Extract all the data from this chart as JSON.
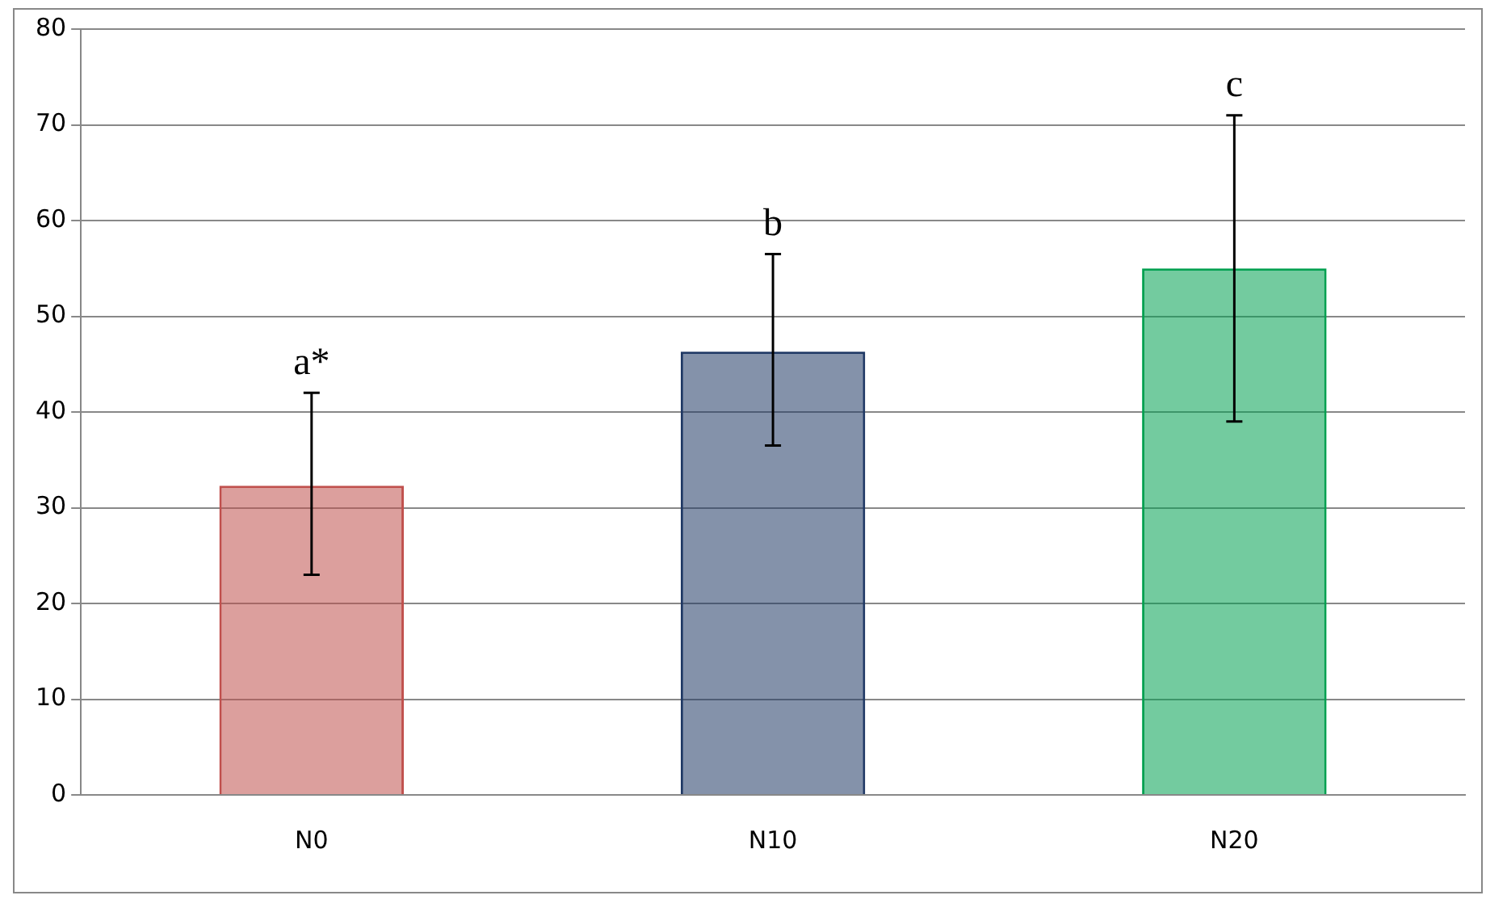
{
  "chart_data": {
    "type": "bar",
    "categories": [
      "N0",
      "N10",
      "N20"
    ],
    "values": [
      32.3,
      46.3,
      55
    ],
    "colors": [
      "#c0504d",
      "#1f3864",
      "#00a050"
    ],
    "errors": [
      [
        23,
        42
      ],
      [
        36.5,
        56.5
      ],
      [
        39,
        71
      ]
    ],
    "ylim": [
      0,
      80
    ],
    "yticks": [
      0,
      10,
      20,
      30,
      40,
      50,
      60,
      70,
      80
    ],
    "grid": "y",
    "annotations": [
      {
        "text": "a*",
        "x": "N0",
        "y": 42
      },
      {
        "text": "b",
        "x": "N10",
        "y": 56.5
      },
      {
        "text": "c",
        "x": "N20",
        "y": 71
      }
    ]
  }
}
